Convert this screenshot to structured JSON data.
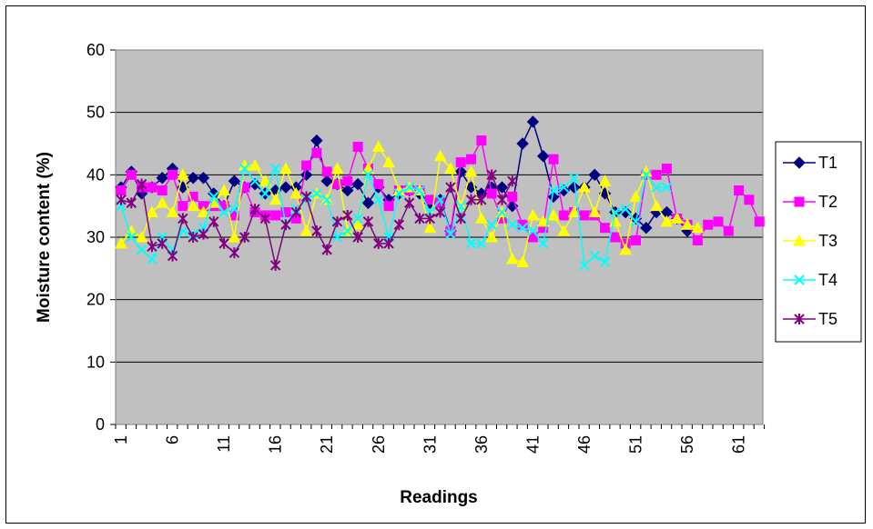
{
  "chart_data": {
    "type": "line",
    "title": "",
    "xlabel": "Readings",
    "ylabel": "Moisture content (%)",
    "ylim": [
      0,
      60
    ],
    "yticks": [
      0,
      10,
      20,
      30,
      40,
      50,
      60
    ],
    "xticks": [
      1,
      6,
      11,
      16,
      21,
      26,
      31,
      36,
      41,
      46,
      51,
      56,
      61
    ],
    "xlim": [
      1,
      63
    ],
    "plot_background": "#c0c0c0",
    "grid": "horizontal",
    "legend": "right",
    "series": [
      {
        "name": "T1",
        "color": "#000080",
        "marker": "diamond",
        "x": [
          1,
          2,
          3,
          4,
          5,
          6,
          7,
          8,
          9,
          10,
          11,
          12,
          13,
          14,
          15,
          16,
          17,
          18,
          19,
          20,
          21,
          22,
          23,
          24,
          25,
          26,
          27,
          28,
          29,
          30,
          31,
          32,
          33,
          34,
          35,
          36,
          37,
          38,
          39,
          40,
          41,
          42,
          43,
          44,
          45,
          46,
          47,
          48,
          49,
          50,
          51,
          52,
          53,
          54,
          55,
          56
        ],
        "values": [
          38,
          40.5,
          37,
          38,
          39.5,
          41,
          38,
          39.5,
          39.5,
          37,
          35,
          39,
          38,
          38.5,
          37,
          37.5,
          38,
          38,
          40,
          45.5,
          39,
          38.5,
          37.5,
          38.5,
          35.5,
          38,
          36,
          37,
          37.5,
          37,
          35.5,
          36,
          31,
          40.5,
          38,
          37,
          38,
          38,
          35,
          45,
          48.5,
          43,
          36.5,
          37.5,
          38,
          38,
          40,
          37,
          34,
          34,
          33,
          31.5,
          34,
          34,
          33,
          31
        ]
      },
      {
        "name": "T2",
        "color": "#ff00ff",
        "marker": "square",
        "x": [
          1,
          2,
          3,
          4,
          5,
          6,
          7,
          8,
          9,
          10,
          11,
          12,
          13,
          14,
          15,
          16,
          17,
          18,
          19,
          20,
          21,
          22,
          23,
          24,
          25,
          26,
          27,
          28,
          29,
          30,
          31,
          32,
          33,
          34,
          35,
          36,
          37,
          38,
          39,
          40,
          41,
          42,
          43,
          44,
          45,
          46,
          47,
          48,
          49,
          50,
          51,
          52,
          53,
          54,
          55,
          56,
          57,
          58,
          59,
          60,
          61,
          62,
          63
        ],
        "values": [
          37.5,
          40,
          38,
          38,
          37.5,
          40,
          35,
          36.5,
          35,
          35,
          35,
          33.5,
          38,
          34,
          33.5,
          33.5,
          34,
          33,
          41.5,
          43.5,
          40.5,
          38.5,
          39,
          44.5,
          41,
          38.5,
          35,
          37.5,
          37.5,
          37.5,
          36,
          35.5,
          31,
          42,
          42.5,
          45.5,
          37,
          33,
          36.5,
          32,
          30,
          31.5,
          42.5,
          33.5,
          34,
          33.5,
          33.5,
          31.5,
          30,
          29,
          29.5,
          40,
          40,
          41,
          33,
          32,
          29.5,
          32,
          32.5,
          31,
          37.5,
          36,
          32.5
        ]
      },
      {
        "name": "T3",
        "color": "#ffff00",
        "marker": "triangle",
        "x": [
          1,
          2,
          3,
          4,
          5,
          6,
          7,
          8,
          9,
          10,
          11,
          12,
          13,
          14,
          15,
          16,
          17,
          18,
          19,
          20,
          21,
          22,
          23,
          24,
          25,
          26,
          27,
          28,
          29,
          30,
          31,
          32,
          33,
          34,
          35,
          36,
          37,
          38,
          39,
          40,
          41,
          42,
          43,
          44,
          45,
          46,
          47,
          48,
          49,
          50,
          51,
          52,
          53,
          54,
          55,
          56,
          57
        ],
        "values": [
          29,
          31,
          30,
          34,
          35.5,
          34,
          40,
          35,
          34,
          35.5,
          37.5,
          30,
          41.5,
          41.5,
          39,
          36,
          41,
          37,
          31,
          37,
          36,
          41,
          31,
          32,
          41,
          44.5,
          42,
          37.5,
          38,
          37.5,
          31.5,
          43,
          41,
          35,
          40.5,
          33,
          30,
          34,
          26.5,
          26,
          33.5,
          32.5,
          33.5,
          31,
          34,
          38,
          34,
          39,
          32.5,
          28,
          36.5,
          40.5,
          35,
          32.5,
          33,
          32,
          31.5
        ]
      },
      {
        "name": "T4",
        "color": "#00ffff",
        "marker": "x",
        "x": [
          1,
          2,
          3,
          4,
          5,
          6,
          7,
          8,
          9,
          10,
          11,
          12,
          13,
          14,
          15,
          16,
          17,
          18,
          19,
          20,
          21,
          22,
          23,
          24,
          25,
          26,
          27,
          28,
          29,
          30,
          31,
          32,
          33,
          34,
          35,
          36,
          37,
          38,
          39,
          40,
          41,
          42,
          43,
          44,
          45,
          46,
          47,
          48,
          49,
          50,
          51,
          52,
          53,
          54
        ],
        "values": [
          35,
          30,
          28,
          26.5,
          30,
          28,
          31,
          30.5,
          31.5,
          36.5,
          34,
          34.5,
          41,
          39,
          37,
          41,
          32,
          34.5,
          36,
          37,
          36,
          30,
          31,
          33,
          40,
          36,
          30,
          37,
          38,
          37.5,
          34,
          36,
          30.5,
          35,
          29,
          29,
          32,
          34,
          32,
          31.5,
          31,
          29,
          37.5,
          38,
          39.5,
          25.5,
          27,
          26,
          34,
          34.5,
          32.5,
          40,
          38,
          38
        ]
      },
      {
        "name": "T5",
        "color": "#800080",
        "marker": "star",
        "x": [
          1,
          2,
          3,
          4,
          5,
          6,
          7,
          8,
          9,
          10,
          11,
          12,
          13,
          14,
          15,
          16,
          17,
          18,
          19,
          20,
          21,
          22,
          23,
          24,
          25,
          26,
          27,
          28,
          29,
          30,
          31,
          32,
          33,
          34,
          35,
          36,
          37,
          38,
          39
        ],
        "values": [
          36,
          35.5,
          38.5,
          28.5,
          29,
          27,
          33,
          30,
          30.5,
          32.5,
          29,
          27.5,
          30,
          34.5,
          33,
          25.5,
          32,
          34,
          36.5,
          31,
          28,
          32.5,
          33.5,
          30,
          32.5,
          29,
          29,
          32,
          35.5,
          33,
          33,
          34,
          38,
          33,
          36,
          36,
          40,
          36,
          39
        ]
      }
    ]
  }
}
